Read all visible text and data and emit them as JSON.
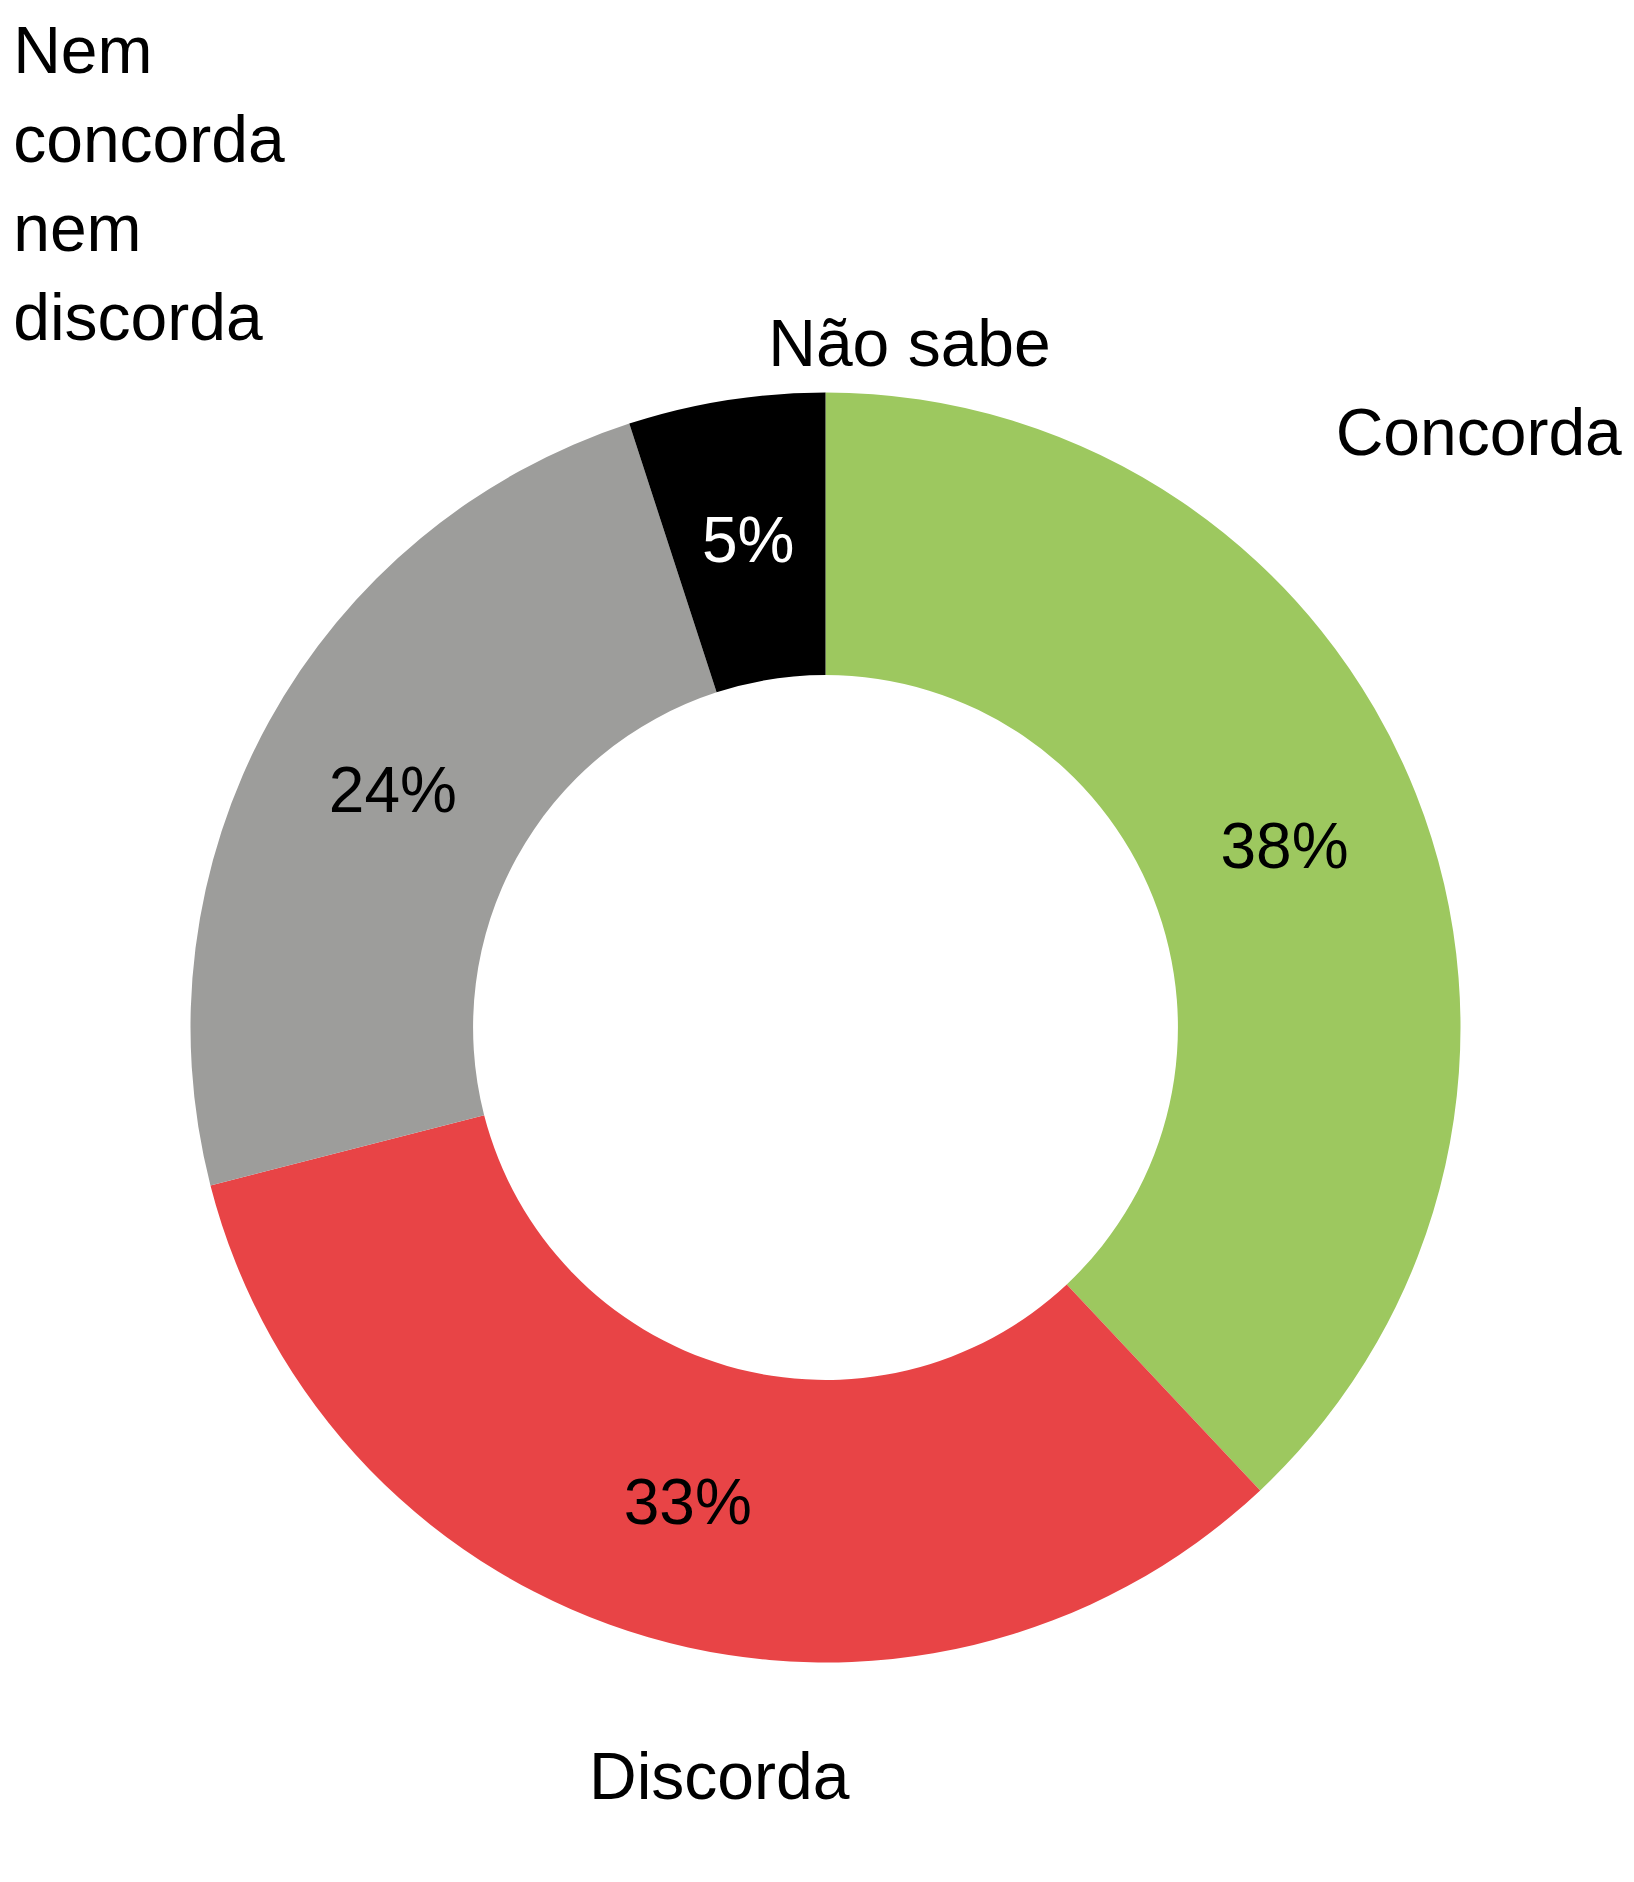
{
  "chart_data": {
    "type": "donut",
    "categories": [
      "Concorda",
      "Discorda",
      "Nem concorda nem discorda",
      "Não sabe"
    ],
    "values": [
      38,
      33,
      24,
      5
    ],
    "colors": [
      "#9dc85f",
      "#e84446",
      "#9d9d9b",
      "#000000"
    ],
    "value_labels": [
      "38%",
      "33%",
      "24%",
      "5%"
    ]
  }
}
